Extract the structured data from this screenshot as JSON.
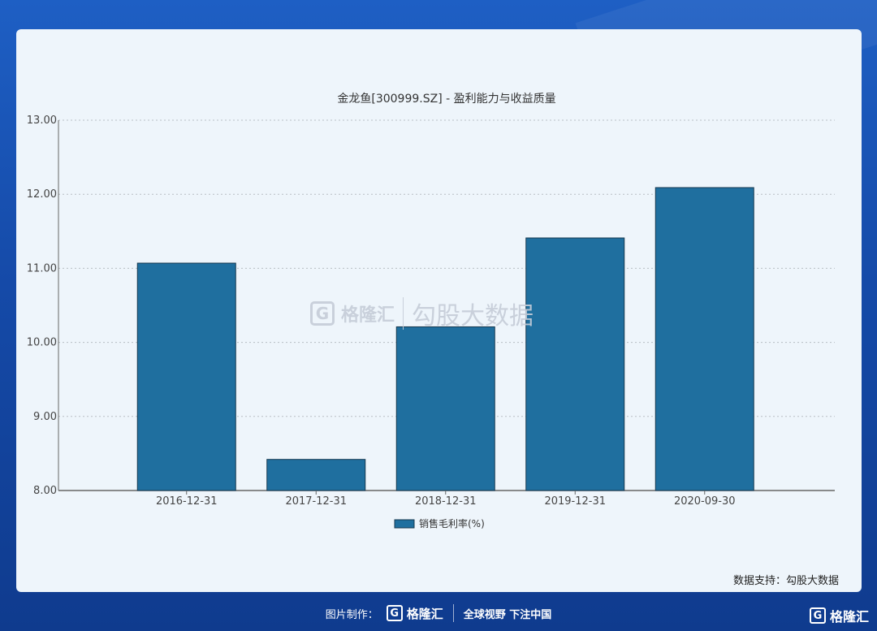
{
  "colors": {
    "bar": "#1f6f9f",
    "bar_stroke": "#16384f",
    "axis": "#666666",
    "grid": "#b8bec4",
    "card": "#eef5fb"
  },
  "chart_data": {
    "type": "bar",
    "title": "金龙鱼[300999.SZ] - 盈利能力与收益质量",
    "categories": [
      "2016-12-31",
      "2017-12-31",
      "2018-12-31",
      "2019-12-31",
      "2020-09-30"
    ],
    "series": [
      {
        "name": "销售毛利率(%)",
        "values": [
          11.07,
          8.42,
          10.21,
          11.41,
          12.09
        ]
      }
    ],
    "ylim": [
      8,
      13
    ],
    "yticks": [
      "8.00",
      "9.00",
      "10.00",
      "11.00",
      "12.00",
      "13.00"
    ],
    "grid": true,
    "legend_position": "bottom"
  },
  "watermark": {
    "brand": "格隆汇",
    "text": "勾股大数据"
  },
  "credit": "数据支持：勾股大数据",
  "footer": {
    "made_by": "图片制作：",
    "brand": "格隆汇",
    "slogan": "全球视野 下注中国",
    "logo_letter": "G"
  },
  "corner": {
    "brand": "格隆汇",
    "logo_letter": "G"
  }
}
